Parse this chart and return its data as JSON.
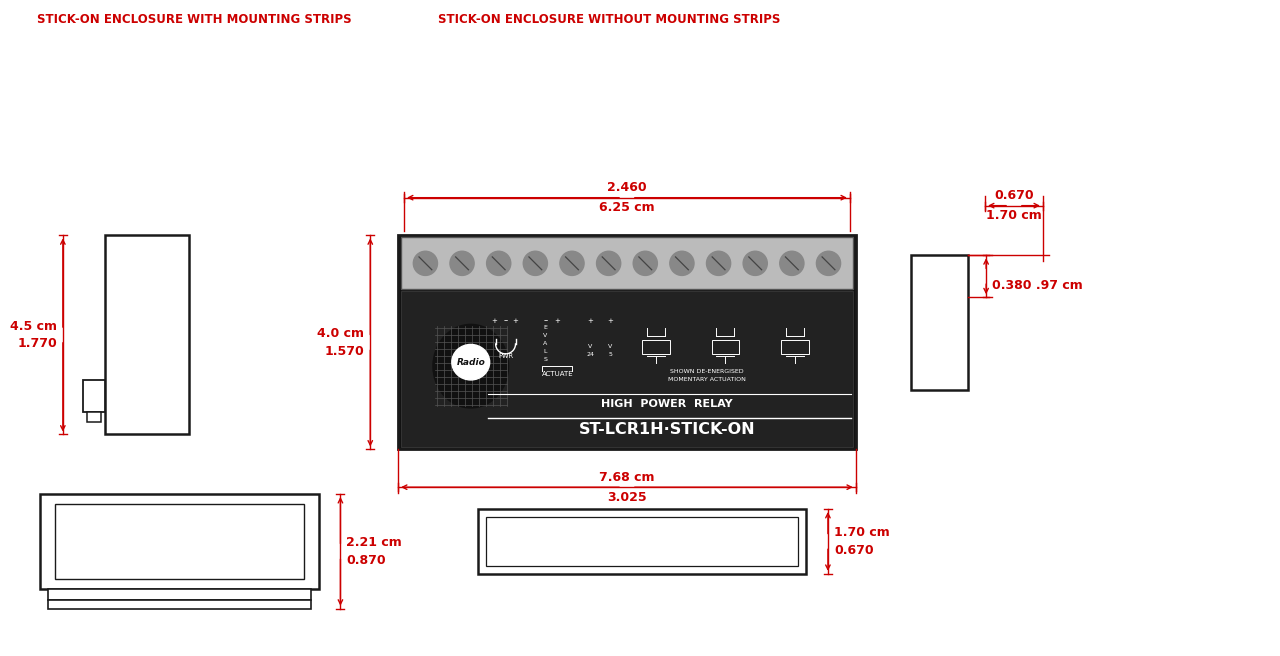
{
  "bg_color": "#ffffff",
  "line_color": "#1a1a1a",
  "dim_color": "#cc0000",
  "figsize": [
    12.8,
    6.56
  ],
  "dpi": 100,
  "labels": {
    "bottom_left": "STICK-ON ENCLOSURE WITH MOUNTING STRIPS",
    "bottom_right": "STICK-ON ENCLOSURE WITHOUT MOUNTING STRIPS",
    "dim_top_left_in": "0.870",
    "dim_top_left_cm": "2.21 cm",
    "dim_top_right_in": "0.670",
    "dim_top_right_cm": "1.70 cm",
    "dim_left_in": "1.770",
    "dim_left_cm": "4.5 cm",
    "dim_center_height_in": "1.570",
    "dim_center_height_cm": "4.0 cm",
    "dim_center_width_in": "3.025",
    "dim_center_width_cm": "7.68 cm",
    "dim_bottom_width_in": "2.460",
    "dim_bottom_width_cm": "6.25 cm",
    "dim_right_small": "0.380 .97 cm",
    "dim_right_bottom_in": "0.670",
    "dim_right_bottom_cm": "1.70 cm",
    "relay_title": "ST-LCR1H·STICK-ON",
    "relay_subtitle": "HIGH  POWER  RELAY"
  }
}
